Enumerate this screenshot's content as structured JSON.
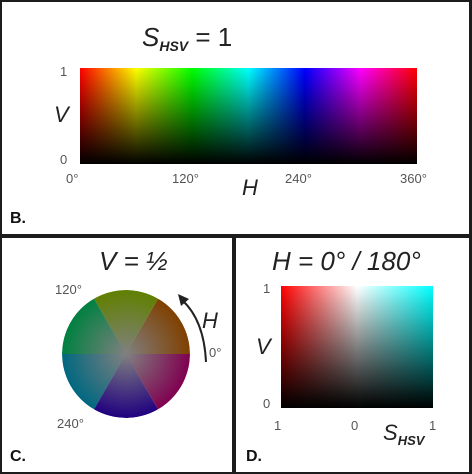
{
  "panel_b": {
    "title_var": "S",
    "title_sub": "HSV",
    "title_rest": " = 1",
    "y_axis_label": "V",
    "y_top": "1",
    "y_bottom": "0",
    "x_axis_label": "H",
    "x_ticks": [
      "0°",
      "120°",
      "240°",
      "360°"
    ],
    "tag": "B."
  },
  "panel_c": {
    "title": "V = ½",
    "label_120": "120°",
    "label_240": "240°",
    "label_0": "0°",
    "rotation_label": "H",
    "tag": "C."
  },
  "panel_d": {
    "title": "H = 0° / 180°",
    "y_axis_label": "V",
    "y_top": "1",
    "y_bottom": "0",
    "x_left": "1",
    "x_mid": "0",
    "x_right": "1",
    "x_axis_var": "S",
    "x_axis_sub": "HSV",
    "tag": "D."
  },
  "colors": {
    "red": "#ff0000",
    "cyan": "#00ffff"
  }
}
